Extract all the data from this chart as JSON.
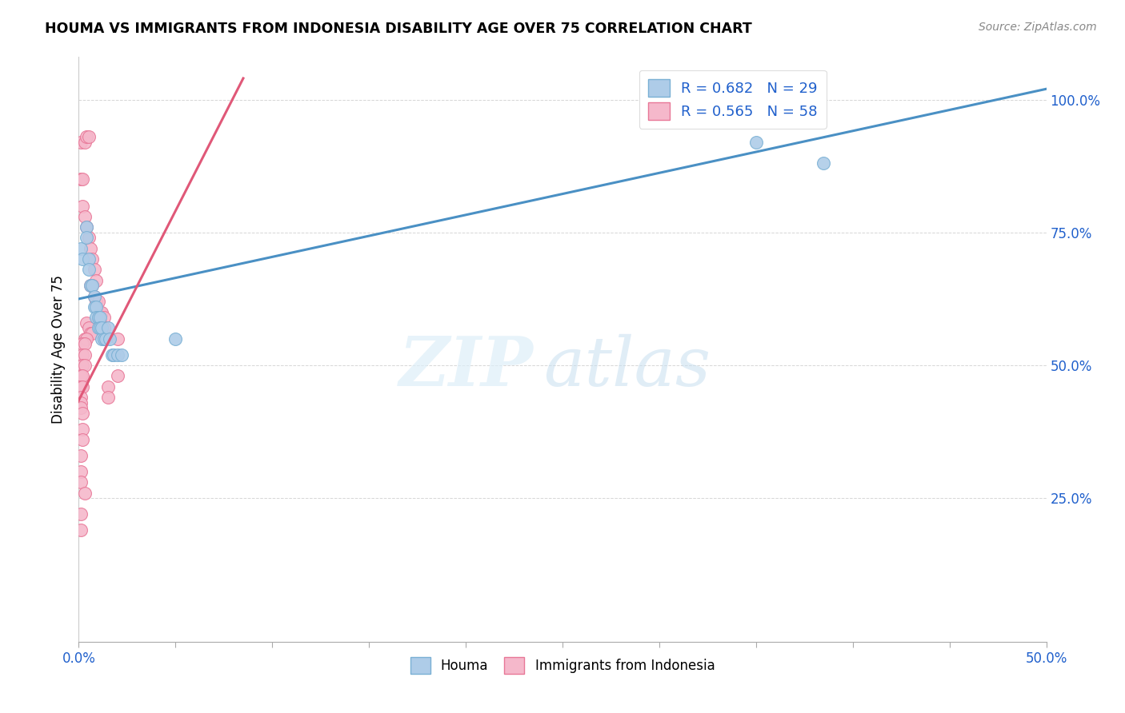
{
  "title": "HOUMA VS IMMIGRANTS FROM INDONESIA DISABILITY AGE OVER 75 CORRELATION CHART",
  "source": "Source: ZipAtlas.com",
  "ylabel": "Disability Age Over 75",
  "yticks_labels": [
    "100.0%",
    "75.0%",
    "50.0%",
    "25.0%"
  ],
  "ytick_vals": [
    1.0,
    0.75,
    0.5,
    0.25
  ],
  "xlim": [
    0.0,
    0.5
  ],
  "ylim": [
    -0.02,
    1.08
  ],
  "legend_r1": "R = 0.682",
  "legend_n1": "N = 29",
  "legend_r2": "R = 0.565",
  "legend_n2": "N = 58",
  "watermark_zip": "ZIP",
  "watermark_atlas": "atlas",
  "houma_color": "#aecce8",
  "indonesia_color": "#f5b8cb",
  "houma_edge_color": "#7ab0d4",
  "indonesia_edge_color": "#e87898",
  "houma_line_color": "#4a90c4",
  "indonesia_line_color": "#e05878",
  "legend_text_color": "#2060cc",
  "houma_trendline_x": [
    0.0,
    0.5
  ],
  "houma_trendline_y": [
    0.625,
    1.02
  ],
  "indonesia_trendline_x": [
    -0.002,
    0.085
  ],
  "indonesia_trendline_y": [
    0.42,
    1.04
  ],
  "houma_scatter": [
    [
      0.001,
      0.72
    ],
    [
      0.002,
      0.7
    ],
    [
      0.004,
      0.76
    ],
    [
      0.004,
      0.74
    ],
    [
      0.005,
      0.7
    ],
    [
      0.005,
      0.68
    ],
    [
      0.006,
      0.65
    ],
    [
      0.007,
      0.65
    ],
    [
      0.008,
      0.63
    ],
    [
      0.008,
      0.61
    ],
    [
      0.009,
      0.61
    ],
    [
      0.009,
      0.59
    ],
    [
      0.01,
      0.59
    ],
    [
      0.01,
      0.57
    ],
    [
      0.011,
      0.59
    ],
    [
      0.011,
      0.57
    ],
    [
      0.012,
      0.55
    ],
    [
      0.012,
      0.57
    ],
    [
      0.013,
      0.55
    ],
    [
      0.014,
      0.55
    ],
    [
      0.015,
      0.57
    ],
    [
      0.016,
      0.55
    ],
    [
      0.017,
      0.52
    ],
    [
      0.018,
      0.52
    ],
    [
      0.02,
      0.52
    ],
    [
      0.022,
      0.52
    ],
    [
      0.05,
      0.55
    ],
    [
      0.35,
      0.92
    ],
    [
      0.385,
      0.88
    ]
  ],
  "indonesia_scatter": [
    [
      0.001,
      0.92
    ],
    [
      0.003,
      0.92
    ],
    [
      0.004,
      0.93
    ],
    [
      0.005,
      0.93
    ],
    [
      0.001,
      0.85
    ],
    [
      0.002,
      0.85
    ],
    [
      0.002,
      0.8
    ],
    [
      0.003,
      0.78
    ],
    [
      0.004,
      0.76
    ],
    [
      0.005,
      0.74
    ],
    [
      0.006,
      0.72
    ],
    [
      0.007,
      0.7
    ],
    [
      0.008,
      0.68
    ],
    [
      0.009,
      0.66
    ],
    [
      0.006,
      0.65
    ],
    [
      0.007,
      0.65
    ],
    [
      0.008,
      0.63
    ],
    [
      0.009,
      0.62
    ],
    [
      0.01,
      0.62
    ],
    [
      0.011,
      0.6
    ],
    [
      0.012,
      0.6
    ],
    [
      0.013,
      0.59
    ],
    [
      0.01,
      0.58
    ],
    [
      0.011,
      0.58
    ],
    [
      0.012,
      0.57
    ],
    [
      0.013,
      0.57
    ],
    [
      0.004,
      0.58
    ],
    [
      0.005,
      0.57
    ],
    [
      0.006,
      0.56
    ],
    [
      0.007,
      0.56
    ],
    [
      0.003,
      0.55
    ],
    [
      0.004,
      0.55
    ],
    [
      0.002,
      0.54
    ],
    [
      0.003,
      0.54
    ],
    [
      0.002,
      0.52
    ],
    [
      0.003,
      0.52
    ],
    [
      0.002,
      0.5
    ],
    [
      0.003,
      0.5
    ],
    [
      0.001,
      0.48
    ],
    [
      0.002,
      0.48
    ],
    [
      0.001,
      0.46
    ],
    [
      0.002,
      0.46
    ],
    [
      0.001,
      0.44
    ],
    [
      0.001,
      0.43
    ],
    [
      0.001,
      0.42
    ],
    [
      0.002,
      0.41
    ],
    [
      0.002,
      0.38
    ],
    [
      0.002,
      0.36
    ],
    [
      0.02,
      0.55
    ],
    [
      0.02,
      0.48
    ],
    [
      0.001,
      0.33
    ],
    [
      0.001,
      0.3
    ],
    [
      0.001,
      0.22
    ],
    [
      0.001,
      0.19
    ],
    [
      0.001,
      0.28
    ],
    [
      0.003,
      0.26
    ],
    [
      0.015,
      0.46
    ],
    [
      0.015,
      0.44
    ]
  ]
}
